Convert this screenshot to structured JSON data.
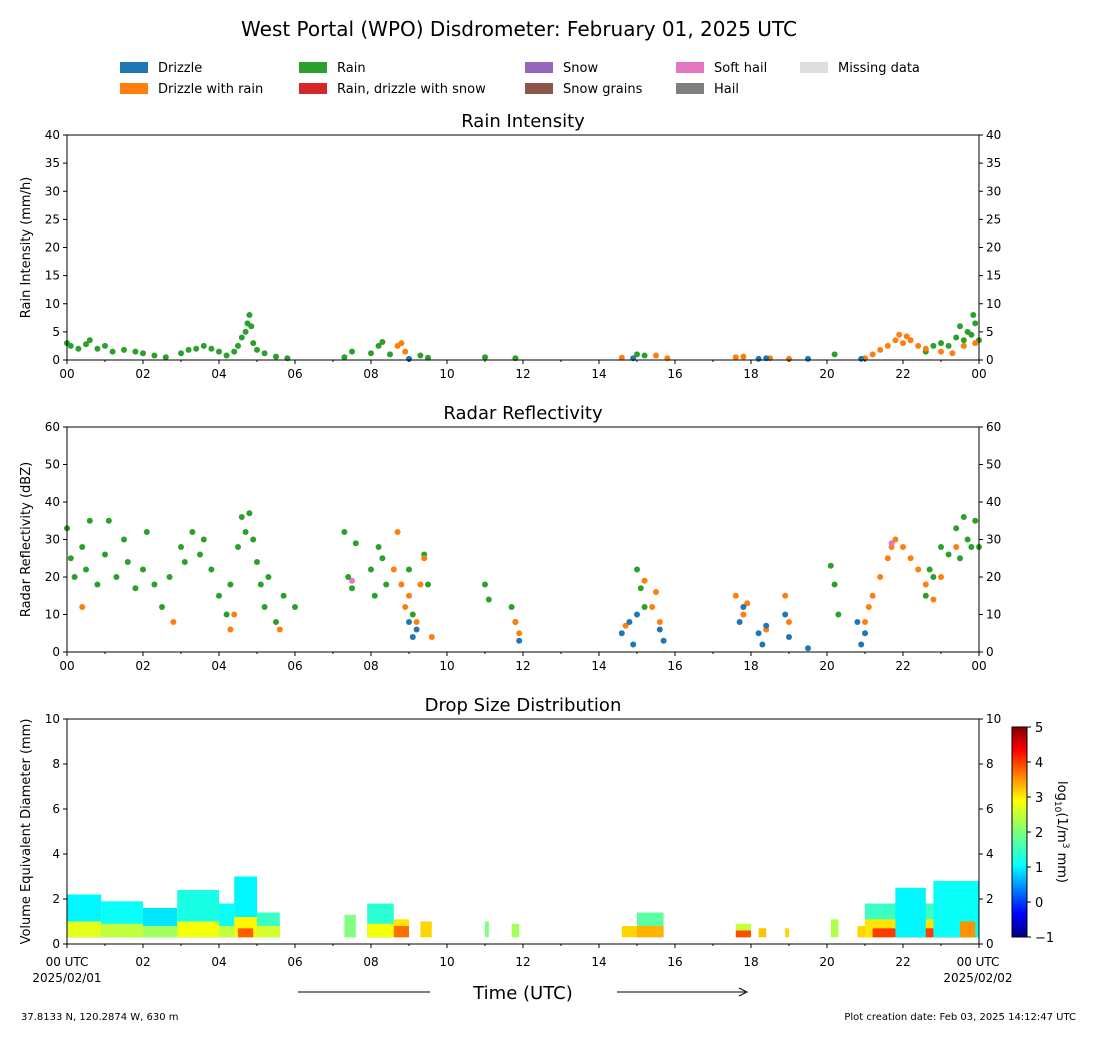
{
  "figure": {
    "title": "West Portal (WPO) Disdrometer: February 01, 2025 UTC",
    "xlabel": "Time (UTC)",
    "x_start_label": "00 UTC",
    "x_start_date": "2025/02/01",
    "x_end_label": "00 UTC",
    "x_end_date": "2025/02/02",
    "location": "37.8133 N, 120.2874 W, 630 m",
    "creation": "Plot creation date: Feb 03, 2025 14:12:47 UTC",
    "colorbar_label": "log10(1/m3 mm)",
    "colorbar_ticks": [
      "5",
      "4",
      "3",
      "2",
      "1",
      "0",
      "−1"
    ]
  },
  "legend": [
    {
      "label": "Drizzle",
      "color": "#1f77b4"
    },
    {
      "label": "Drizzle with rain",
      "color": "#ff7f0e"
    },
    {
      "label": "Rain",
      "color": "#2ca02c"
    },
    {
      "label": "Rain, drizzle with snow",
      "color": "#d62728"
    },
    {
      "label": "Snow",
      "color": "#9467bd"
    },
    {
      "label": "Snow grains",
      "color": "#8c564b"
    },
    {
      "label": "Soft hail",
      "color": "#e377c2"
    },
    {
      "label": "Hail",
      "color": "#7f7f7f"
    },
    {
      "label": "Missing data",
      "color": "#dddddd"
    }
  ],
  "chart_data": [
    {
      "type": "scatter",
      "title": "Rain Intensity",
      "ylabel": "Rain Intensity (mm/h)",
      "xlim": [
        0,
        24
      ],
      "ylim": [
        0,
        40
      ],
      "x_ticks": [
        "00",
        "02",
        "04",
        "06",
        "08",
        "10",
        "12",
        "14",
        "16",
        "18",
        "20",
        "22",
        "00"
      ],
      "y_ticks": [
        0,
        5,
        10,
        15,
        20,
        25,
        30,
        35,
        40
      ],
      "series": [
        {
          "name": "Rain",
          "color": "#2ca02c",
          "x": [
            0.0,
            0.1,
            0.3,
            0.5,
            0.6,
            0.8,
            1.0,
            1.2,
            1.5,
            1.8,
            2.0,
            2.3,
            2.6,
            3.0,
            3.2,
            3.4,
            3.6,
            3.8,
            4.0,
            4.2,
            4.4,
            4.5,
            4.6,
            4.7,
            4.75,
            4.8,
            4.85,
            4.9,
            5.0,
            5.2,
            5.5,
            5.8,
            7.3,
            7.5,
            8.0,
            8.2,
            8.3,
            8.5,
            9.3,
            9.5,
            11.0,
            11.8,
            15.0,
            15.2,
            20.2,
            22.6,
            22.8,
            23.0,
            23.2,
            23.4,
            23.5,
            23.6,
            23.7,
            23.8,
            23.85,
            23.9,
            24.0
          ],
          "y": [
            3.0,
            2.5,
            2.0,
            2.8,
            3.5,
            2.0,
            2.5,
            1.5,
            1.8,
            1.5,
            1.2,
            0.8,
            0.5,
            1.2,
            1.8,
            2.0,
            2.5,
            2.0,
            1.5,
            0.8,
            1.5,
            2.5,
            4.0,
            5.0,
            6.5,
            8.0,
            6.0,
            3.0,
            1.8,
            1.2,
            0.6,
            0.3,
            0.5,
            1.5,
            1.2,
            2.5,
            3.2,
            1.0,
            0.8,
            0.4,
            0.5,
            0.3,
            1.0,
            0.8,
            1.0,
            1.5,
            2.5,
            3.0,
            2.5,
            4.0,
            6.0,
            3.5,
            5.0,
            4.5,
            8.0,
            6.5,
            3.5
          ]
        },
        {
          "name": "Drizzle with rain",
          "color": "#ff7f0e",
          "x": [
            8.7,
            8.8,
            8.9,
            14.6,
            15.5,
            15.8,
            17.6,
            17.8,
            18.5,
            19.0,
            21.0,
            21.2,
            21.4,
            21.6,
            21.8,
            21.9,
            22.0,
            22.1,
            22.2,
            22.4,
            22.6,
            23.0,
            23.3,
            23.6,
            23.9
          ],
          "y": [
            2.5,
            3.0,
            1.5,
            0.4,
            0.8,
            0.3,
            0.5,
            0.6,
            0.3,
            0.2,
            0.3,
            1.0,
            1.8,
            2.5,
            3.5,
            4.5,
            3.0,
            4.2,
            3.5,
            2.5,
            2.0,
            1.5,
            1.2,
            2.5,
            3.0
          ]
        },
        {
          "name": "Drizzle",
          "color": "#1f77b4",
          "x": [
            9.0,
            14.9,
            18.2,
            18.4,
            19.5,
            20.9
          ],
          "y": [
            0.2,
            0.3,
            0.2,
            0.3,
            0.2,
            0.2
          ]
        }
      ]
    },
    {
      "type": "scatter",
      "title": "Radar Reflectivity",
      "ylabel": "Radar Reflectivity (dBZ)",
      "xlim": [
        0,
        24
      ],
      "ylim": [
        0,
        60
      ],
      "x_ticks": [
        "00",
        "02",
        "04",
        "06",
        "08",
        "10",
        "12",
        "14",
        "16",
        "18",
        "20",
        "22",
        "00"
      ],
      "y_ticks": [
        0,
        10,
        20,
        30,
        40,
        50,
        60
      ],
      "series": [
        {
          "name": "Rain",
          "color": "#2ca02c",
          "x": [
            0.0,
            0.1,
            0.2,
            0.4,
            0.5,
            0.6,
            0.8,
            1.0,
            1.1,
            1.3,
            1.5,
            1.6,
            1.8,
            2.0,
            2.1,
            2.3,
            2.5,
            2.7,
            3.0,
            3.1,
            3.3,
            3.5,
            3.6,
            3.8,
            4.0,
            4.2,
            4.3,
            4.5,
            4.6,
            4.7,
            4.8,
            4.9,
            5.0,
            5.1,
            5.2,
            5.3,
            5.5,
            5.7,
            6.0,
            7.3,
            7.4,
            7.5,
            7.6,
            8.0,
            8.1,
            8.2,
            8.3,
            8.4,
            9.0,
            9.1,
            9.4,
            9.5,
            11.0,
            11.1,
            11.7,
            11.8,
            15.0,
            15.1,
            15.2,
            20.1,
            20.2,
            20.3,
            22.6,
            22.7,
            22.8,
            23.0,
            23.2,
            23.4,
            23.5,
            23.6,
            23.7,
            23.8,
            23.9,
            24.0
          ],
          "y": [
            33,
            25,
            20,
            28,
            22,
            35,
            18,
            26,
            35,
            20,
            30,
            24,
            17,
            22,
            32,
            18,
            12,
            20,
            28,
            24,
            32,
            26,
            30,
            22,
            15,
            10,
            18,
            28,
            36,
            32,
            37,
            30,
            24,
            18,
            12,
            20,
            8,
            15,
            12,
            32,
            20,
            17,
            29,
            22,
            15,
            28,
            25,
            18,
            22,
            10,
            26,
            18,
            18,
            14,
            12,
            8,
            22,
            17,
            12,
            23,
            18,
            10,
            15,
            22,
            20,
            28,
            26,
            33,
            25,
            36,
            30,
            28,
            35,
            28
          ]
        },
        {
          "name": "Drizzle with rain",
          "color": "#ff7f0e",
          "x": [
            0.4,
            2.8,
            4.3,
            4.4,
            5.6,
            8.6,
            8.7,
            8.8,
            8.9,
            9.0,
            9.2,
            9.3,
            9.4,
            9.6,
            11.8,
            11.9,
            14.7,
            15.2,
            15.4,
            15.5,
            15.6,
            17.6,
            17.8,
            17.9,
            18.4,
            18.9,
            19.0,
            21.0,
            21.1,
            21.2,
            21.4,
            21.6,
            21.7,
            21.8,
            22.0,
            22.2,
            22.4,
            22.6,
            22.8,
            23.0,
            23.4
          ],
          "y": [
            12,
            8,
            6,
            10,
            6,
            22,
            32,
            18,
            12,
            15,
            8,
            18,
            25,
            4,
            8,
            5,
            7,
            19,
            12,
            16,
            8,
            15,
            10,
            13,
            6,
            15,
            8,
            8,
            12,
            15,
            20,
            25,
            28,
            30,
            28,
            25,
            22,
            18,
            14,
            20,
            28
          ]
        },
        {
          "name": "Drizzle",
          "color": "#1f77b4",
          "x": [
            9.0,
            9.1,
            9.2,
            11.9,
            14.6,
            14.8,
            14.9,
            15.0,
            15.6,
            15.7,
            17.7,
            17.8,
            18.2,
            18.3,
            18.4,
            18.9,
            19.0,
            19.5,
            20.8,
            20.9,
            21.0
          ],
          "y": [
            8,
            4,
            6,
            3,
            5,
            8,
            2,
            10,
            6,
            3,
            8,
            12,
            5,
            2,
            7,
            10,
            4,
            1,
            8,
            2,
            5
          ]
        },
        {
          "name": "Soft hail",
          "color": "#e377c2",
          "x": [
            7.5,
            21.7
          ],
          "y": [
            19,
            29
          ]
        }
      ]
    },
    {
      "type": "heatmap",
      "title": "Drop Size Distribution",
      "ylabel": "Volume Equivalent Diameter (mm)",
      "xlim": [
        0,
        24
      ],
      "ylim": [
        0,
        10
      ],
      "x_ticks": [
        "00",
        "02",
        "04",
        "06",
        "08",
        "10",
        "12",
        "14",
        "16",
        "18",
        "20",
        "22",
        "00"
      ],
      "y_ticks": [
        0,
        2,
        4,
        6,
        8,
        10
      ],
      "colorbar": {
        "min": -1,
        "max": 5,
        "label": "log10(1/m3 mm)"
      },
      "cells": [
        {
          "t0": 0.0,
          "t1": 0.9,
          "d0": 0.3,
          "d1": 2.2,
          "v": 1.2
        },
        {
          "t0": 0.0,
          "t1": 0.9,
          "d0": 0.3,
          "d1": 1.0,
          "v": 2.6
        },
        {
          "t0": 0.9,
          "t1": 2.0,
          "d0": 0.3,
          "d1": 1.9,
          "v": 1.3
        },
        {
          "t0": 0.9,
          "t1": 2.0,
          "d0": 0.3,
          "d1": 0.9,
          "v": 2.4
        },
        {
          "t0": 2.0,
          "t1": 2.9,
          "d0": 0.3,
          "d1": 1.6,
          "v": 1.1
        },
        {
          "t0": 2.0,
          "t1": 2.9,
          "d0": 0.3,
          "d1": 0.8,
          "v": 2.2
        },
        {
          "t0": 2.9,
          "t1": 4.0,
          "d0": 0.3,
          "d1": 2.4,
          "v": 1.4
        },
        {
          "t0": 2.9,
          "t1": 4.0,
          "d0": 0.3,
          "d1": 1.0,
          "v": 2.7
        },
        {
          "t0": 4.0,
          "t1": 4.4,
          "d0": 0.3,
          "d1": 1.8,
          "v": 1.3
        },
        {
          "t0": 4.0,
          "t1": 4.4,
          "d0": 0.3,
          "d1": 0.8,
          "v": 2.4
        },
        {
          "t0": 4.4,
          "t1": 5.0,
          "d0": 0.3,
          "d1": 3.0,
          "v": 1.2
        },
        {
          "t0": 4.4,
          "t1": 5.0,
          "d0": 0.3,
          "d1": 1.2,
          "v": 2.8
        },
        {
          "t0": 4.5,
          "t1": 4.9,
          "d0": 0.3,
          "d1": 0.7,
          "v": 3.7
        },
        {
          "t0": 5.0,
          "t1": 5.6,
          "d0": 0.3,
          "d1": 1.4,
          "v": 1.6
        },
        {
          "t0": 5.0,
          "t1": 5.6,
          "d0": 0.3,
          "d1": 0.8,
          "v": 2.5
        },
        {
          "t0": 7.3,
          "t1": 7.6,
          "d0": 0.3,
          "d1": 1.3,
          "v": 2.0
        },
        {
          "t0": 7.9,
          "t1": 8.6,
          "d0": 0.3,
          "d1": 1.8,
          "v": 1.5
        },
        {
          "t0": 7.9,
          "t1": 8.6,
          "d0": 0.3,
          "d1": 0.9,
          "v": 2.7
        },
        {
          "t0": 8.6,
          "t1": 9.0,
          "d0": 0.3,
          "d1": 1.1,
          "v": 2.9
        },
        {
          "t0": 8.6,
          "t1": 9.0,
          "d0": 0.3,
          "d1": 0.8,
          "v": 3.6
        },
        {
          "t0": 9.3,
          "t1": 9.6,
          "d0": 0.3,
          "d1": 1.0,
          "v": 3.0
        },
        {
          "t0": 11.0,
          "t1": 11.1,
          "d0": 0.3,
          "d1": 1.0,
          "v": 2.0
        },
        {
          "t0": 11.7,
          "t1": 11.9,
          "d0": 0.3,
          "d1": 0.9,
          "v": 2.2
        },
        {
          "t0": 14.6,
          "t1": 15.0,
          "d0": 0.3,
          "d1": 0.8,
          "v": 3.0
        },
        {
          "t0": 15.0,
          "t1": 15.7,
          "d0": 0.3,
          "d1": 1.4,
          "v": 1.8
        },
        {
          "t0": 15.0,
          "t1": 15.7,
          "d0": 0.3,
          "d1": 0.8,
          "v": 3.2
        },
        {
          "t0": 17.6,
          "t1": 18.0,
          "d0": 0.3,
          "d1": 0.9,
          "v": 2.4
        },
        {
          "t0": 17.6,
          "t1": 18.0,
          "d0": 0.3,
          "d1": 0.6,
          "v": 3.8
        },
        {
          "t0": 18.2,
          "t1": 18.4,
          "d0": 0.3,
          "d1": 0.7,
          "v": 3.1
        },
        {
          "t0": 18.9,
          "t1": 19.0,
          "d0": 0.3,
          "d1": 0.7,
          "v": 3.0
        },
        {
          "t0": 20.1,
          "t1": 20.3,
          "d0": 0.3,
          "d1": 1.1,
          "v": 2.3
        },
        {
          "t0": 20.8,
          "t1": 21.0,
          "d0": 0.3,
          "d1": 0.8,
          "v": 3.0
        },
        {
          "t0": 21.0,
          "t1": 24.0,
          "d0": 0.3,
          "d1": 1.8,
          "v": 1.6
        },
        {
          "t0": 21.0,
          "t1": 24.0,
          "d0": 0.3,
          "d1": 1.1,
          "v": 2.9
        },
        {
          "t0": 21.2,
          "t1": 23.6,
          "d0": 0.3,
          "d1": 0.7,
          "v": 3.9
        },
        {
          "t0": 21.8,
          "t1": 22.6,
          "d0": 0.3,
          "d1": 2.5,
          "v": 1.2
        },
        {
          "t0": 22.8,
          "t1": 24.0,
          "d0": 0.3,
          "d1": 2.8,
          "v": 1.3
        },
        {
          "t0": 23.5,
          "t1": 23.9,
          "d0": 0.3,
          "d1": 1.0,
          "v": 3.4
        }
      ]
    }
  ]
}
